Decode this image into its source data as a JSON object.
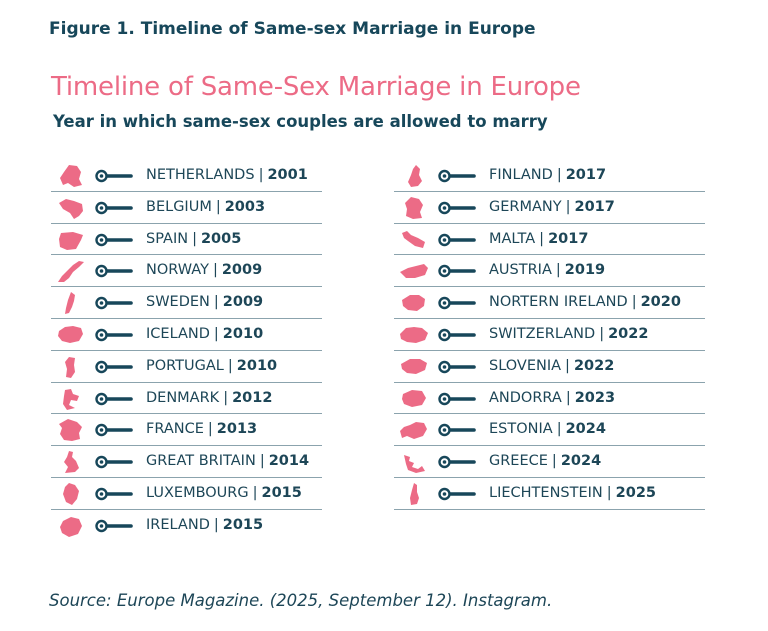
{
  "figure_caption": "Figure 1. Timeline of Same-sex Marriage in Europe",
  "title": "Timeline of Same-Sex Marriage in Europe",
  "subtitle": "Year in which same-sex couples are allowed to marry",
  "separator": "|",
  "source": "Source: Europe Magazine. (2025, September 12). Instagram.",
  "colors": {
    "accent": "#ec6b86",
    "navy": "#17475a",
    "rule": "#8ba3ad"
  },
  "left_column": [
    {
      "country": "NETHERLANDS",
      "year": "2001"
    },
    {
      "country": "BELGIUM",
      "year": "2003"
    },
    {
      "country": "SPAIN",
      "year": "2005"
    },
    {
      "country": "NORWAY",
      "year": "2009"
    },
    {
      "country": "SWEDEN",
      "year": "2009"
    },
    {
      "country": "ICELAND",
      "year": "2010"
    },
    {
      "country": "PORTUGAL",
      "year": "2010"
    },
    {
      "country": "DENMARK",
      "year": "2012"
    },
    {
      "country": "FRANCE",
      "year": "2013"
    },
    {
      "country": "GREAT BRITAIN",
      "year": "2014"
    },
    {
      "country": "LUXEMBOURG",
      "year": "2015"
    },
    {
      "country": "IRELAND",
      "year": "2015"
    }
  ],
  "right_column": [
    {
      "country": "FINLAND",
      "year": "2017"
    },
    {
      "country": "GERMANY",
      "year": "2017"
    },
    {
      "country": "MALTA",
      "year": "2017"
    },
    {
      "country": "AUSTRIA",
      "year": "2019"
    },
    {
      "country": "NORTERN IRELAND",
      "year": "2020"
    },
    {
      "country": "SWITZERLAND",
      "year": "2022"
    },
    {
      "country": "SLOVENIA",
      "year": "2022"
    },
    {
      "country": "ANDORRA",
      "year": "2023"
    },
    {
      "country": "ESTONIA",
      "year": "2024"
    },
    {
      "country": "GREECE",
      "year": "2024"
    },
    {
      "country": "LIECHTENSTEIN",
      "year": "2025"
    }
  ]
}
